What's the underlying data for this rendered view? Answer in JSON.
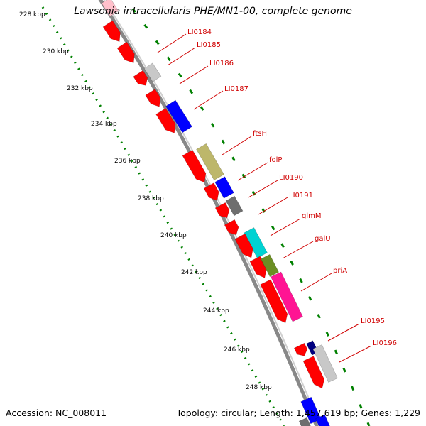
{
  "title": "Lawsonia intracellularis PHE/MN1-00, complete genome",
  "footer": {
    "accession": "Accession: NC_008011",
    "summary": "Topology: circular; Length: 1,457,619 bp; Genes: 1,229"
  },
  "colors": {
    "red": "#ff0000",
    "gray": "#c8c8c8",
    "dark_gray": "#6e6e6e",
    "blue": "#0000ff",
    "navy": "#000080",
    "khaki": "#bdb76b",
    "cyan": "#00d2d2",
    "olive": "#6b8e23",
    "magenta": "#ff1493",
    "pink": "#ffc0cb",
    "backbone": "#999999",
    "tick": "#008000",
    "label": "#d00000"
  },
  "ticks": [
    "228 kbp",
    "230 kbp",
    "232 kbp",
    "234 kbp",
    "236 kbp",
    "238 kbp",
    "240 kbp",
    "242 kbp",
    "244 kbp",
    "246 kbp",
    "248 kbp"
  ],
  "gene_labels": [
    "LI0184",
    "LI0185",
    "LI0186",
    "LI0187",
    "ftsH",
    "folP",
    "LI0190",
    "LI0191",
    "glmM",
    "galU",
    "priA",
    "LI0195",
    "LI0196"
  ]
}
